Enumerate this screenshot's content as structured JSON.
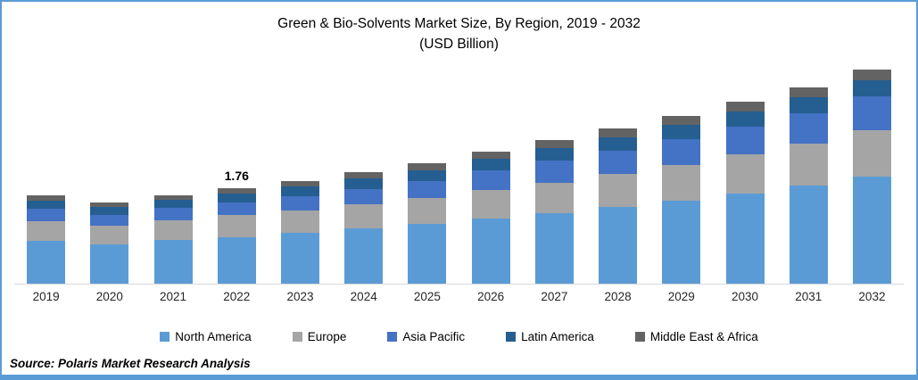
{
  "title": {
    "line1": "Green & Bio-Solvents Market Size, By Region, 2019 - 2032",
    "line2": "(USD Billion)"
  },
  "source_note": "Source: Polaris Market Research Analysis",
  "colors": {
    "frame_border": "#5B9BD5",
    "axis_line": "#D9D9D9"
  },
  "chart_data": {
    "type": "bar",
    "stacked": true,
    "title": "Green & Bio-Solvents Market Size, By Region, 2019 - 2032",
    "subtitle": "(USD Billion)",
    "unit": "USD Billion",
    "grid": false,
    "legend_position": "bottom",
    "ylim": [
      0,
      4.2
    ],
    "categories": [
      "2019",
      "2020",
      "2021",
      "2022",
      "2023",
      "2024",
      "2025",
      "2026",
      "2027",
      "2028",
      "2029",
      "2030",
      "2031",
      "2032"
    ],
    "series": [
      {
        "name": "North America",
        "color": "#5B9BD5",
        "values": [
          0.79,
          0.73,
          0.8,
          0.86,
          0.93,
          1.01,
          1.1,
          1.2,
          1.3,
          1.41,
          1.53,
          1.66,
          1.8,
          1.97
        ]
      },
      {
        "name": "Europe",
        "color": "#A5A5A5",
        "values": [
          0.36,
          0.33,
          0.36,
          0.4,
          0.42,
          0.45,
          0.48,
          0.52,
          0.56,
          0.6,
          0.65,
          0.71,
          0.77,
          0.85
        ]
      },
      {
        "name": "Asia Pacific",
        "color": "#4472C4",
        "values": [
          0.23,
          0.21,
          0.23,
          0.24,
          0.26,
          0.28,
          0.31,
          0.36,
          0.41,
          0.44,
          0.48,
          0.52,
          0.56,
          0.62
        ]
      },
      {
        "name": "Latin America",
        "color": "#255E91",
        "values": [
          0.15,
          0.14,
          0.15,
          0.15,
          0.17,
          0.19,
          0.2,
          0.21,
          0.22,
          0.24,
          0.26,
          0.28,
          0.29,
          0.3
        ]
      },
      {
        "name": "Middle East & Africa",
        "color": "#636363",
        "values": [
          0.09,
          0.08,
          0.09,
          0.11,
          0.11,
          0.12,
          0.13,
          0.14,
          0.15,
          0.16,
          0.17,
          0.18,
          0.19,
          0.2
        ]
      }
    ],
    "totals": [
      1.62,
      1.49,
      1.63,
      1.76,
      1.89,
      2.05,
      2.22,
      2.43,
      2.64,
      2.85,
      3.09,
      3.35,
      3.61,
      3.94
    ],
    "annotations": [
      {
        "category": "2022",
        "label": "1.76"
      }
    ]
  }
}
